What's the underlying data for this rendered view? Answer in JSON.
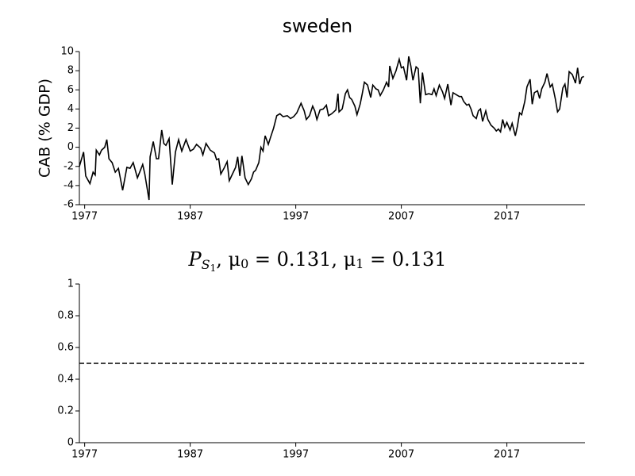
{
  "chart_data": [
    {
      "type": "line",
      "title": "sweden",
      "ylabel": "CAB (% GDP)",
      "xlim": [
        1976.5,
        2024.4
      ],
      "xticks": [
        1977,
        1987,
        1997,
        2007,
        2017
      ],
      "ylim": [
        -6,
        10
      ],
      "yticks": [
        -6,
        -4,
        -2,
        0,
        2,
        4,
        6,
        8,
        10
      ],
      "series": [
        {
          "color": "#000000",
          "dashed": false,
          "x": [
            1976.5,
            1976.9,
            1977.1,
            1977.5,
            1977.8,
            1978.0,
            1978.1,
            1978.4,
            1978.6,
            1978.9,
            1979.1,
            1979.3,
            1979.6,
            1979.9,
            1980.2,
            1980.6,
            1981.0,
            1981.3,
            1981.6,
            1982.0,
            1982.5,
            1982.7,
            1983.1,
            1983.2,
            1983.5,
            1983.8,
            1984.0,
            1984.3,
            1984.5,
            1984.7,
            1985.0,
            1985.3,
            1985.6,
            1985.9,
            1986.2,
            1986.6,
            1987.0,
            1987.3,
            1987.6,
            1988.0,
            1988.2,
            1988.5,
            1988.9,
            1989.3,
            1989.5,
            1989.7,
            1989.9,
            1990.2,
            1990.5,
            1990.7,
            1991.0,
            1991.3,
            1991.5,
            1991.7,
            1991.9,
            1992.2,
            1992.5,
            1992.8,
            1993.0,
            1993.2,
            1993.5,
            1993.7,
            1993.9,
            1994.1,
            1994.4,
            1994.6,
            1994.9,
            1995.2,
            1995.5,
            1995.8,
            1996.2,
            1996.5,
            1996.8,
            1997.1,
            1997.5,
            1997.8,
            1998.0,
            1998.3,
            1998.6,
            1998.8,
            1999.0,
            1999.3,
            1999.6,
            1999.9,
            2000.1,
            2000.4,
            2000.8,
            2001.0,
            2001.1,
            2001.4,
            2001.7,
            2001.9,
            2002.1,
            2002.3,
            2002.6,
            2002.8,
            2003.1,
            2003.3,
            2003.5,
            2003.8,
            2004.1,
            2004.3,
            2004.6,
            2004.8,
            2005.0,
            2005.3,
            2005.6,
            2005.8,
            2005.9,
            2006.2,
            2006.5,
            2006.8,
            2007.0,
            2007.2,
            2007.5,
            2007.7,
            2007.9,
            2008.1,
            2008.4,
            2008.6,
            2008.8,
            2009.0,
            2009.3,
            2009.6,
            2009.9,
            2010.1,
            2010.3,
            2010.6,
            2010.9,
            2011.1,
            2011.4,
            2011.7,
            2011.9,
            2012.2,
            2012.5,
            2012.7,
            2012.9,
            2013.2,
            2013.4,
            2013.6,
            2013.8,
            2014.1,
            2014.3,
            2014.5,
            2014.7,
            2015.0,
            2015.2,
            2015.5,
            2015.8,
            2016.0,
            2016.2,
            2016.4,
            2016.6,
            2016.8,
            2017.0,
            2017.3,
            2017.5,
            2017.8,
            2018.0,
            2018.2,
            2018.4,
            2018.7,
            2018.9,
            2019.2,
            2019.4,
            2019.6,
            2019.9,
            2020.1,
            2020.3,
            2020.6,
            2020.8,
            2021.1,
            2021.3,
            2021.6,
            2021.8,
            2022.0,
            2022.3,
            2022.5,
            2022.7,
            2022.9,
            2023.2,
            2023.5,
            2023.7,
            2023.9,
            2024.1,
            2024.3
          ],
          "values": [
            -2,
            -0.5,
            -3,
            -3.8,
            -2.6,
            -2.9,
            -0.3,
            -0.8,
            -0.3,
            0,
            0.8,
            -1.2,
            -1.6,
            -2.6,
            -2.2,
            -4.5,
            -2.1,
            -2.2,
            -1.6,
            -3.2,
            -1.8,
            -2.8,
            -5.5,
            -1,
            0.6,
            -1.2,
            -1.2,
            1.8,
            0.4,
            0.2,
            0.9,
            -3.9,
            -0.5,
            0.8,
            -0.4,
            0.8,
            -0.4,
            -0.2,
            0.3,
            -0.1,
            -0.8,
            0.4,
            -0.3,
            -0.6,
            -1.3,
            -1.2,
            -2.8,
            -2.2,
            -1.5,
            -3.5,
            -2.8,
            -2.1,
            -1,
            -3,
            -0.9,
            -3.2,
            -3.9,
            -3.3,
            -2.6,
            -2.4,
            -1.6,
            0,
            -0.4,
            1.2,
            0.3,
            1,
            2,
            3.3,
            3.5,
            3.2,
            3.3,
            3,
            3.2,
            3.6,
            4.6,
            3.8,
            2.9,
            3.3,
            4.3,
            3.8,
            2.9,
            3.9,
            4,
            4.4,
            3.3,
            3.5,
            3.9,
            5.6,
            3.7,
            4,
            5.6,
            6,
            5.2,
            5,
            4.3,
            3.4,
            4.5,
            5.6,
            6.8,
            6.5,
            5.2,
            6.5,
            6.1,
            6,
            5.4,
            6,
            6.8,
            6.3,
            8.5,
            7.2,
            8,
            9.2,
            8.3,
            8.4,
            7,
            9.5,
            8.5,
            7,
            8.4,
            8.2,
            4.6,
            7.8,
            5.5,
            5.6,
            5.5,
            6.1,
            5.4,
            6.5,
            5.8,
            5.1,
            6.6,
            4.4,
            5.7,
            5.5,
            5.3,
            5.3,
            4.8,
            4.4,
            4.5,
            4,
            3.3,
            3,
            3.8,
            4,
            2.7,
            3.8,
            2.9,
            2.3,
            2,
            1.7,
            1.9,
            1.6,
            2.9,
            2.1,
            2.6,
            1.8,
            2.5,
            1.2,
            2.2,
            3.6,
            3.4,
            4.8,
            6.3,
            7.1,
            4.5,
            5.7,
            5.9,
            5.1,
            6.1,
            6.8,
            7.7,
            6.3,
            6.6,
            5,
            3.7,
            4,
            6.2,
            6.6,
            5.2,
            7.9,
            7.6,
            6.7,
            8.3,
            6.6,
            7.3,
            7.4
          ]
        }
      ]
    },
    {
      "type": "line",
      "title": [
        "P",
        "S",
        "1",
        ", μ",
        "0",
        " = 0.131, μ",
        "1",
        " = 0.131"
      ],
      "xlim": [
        1976.5,
        2024.4
      ],
      "xticks": [
        1977,
        1987,
        1997,
        2007,
        2017
      ],
      "ylim": [
        0,
        1
      ],
      "yticks": [
        0,
        0.2,
        0.4,
        0.6,
        0.8,
        1
      ],
      "series": [
        {
          "color": "#000000",
          "dashed": true,
          "x": [
            1976.5,
            2024.4
          ],
          "values": [
            0.5,
            0.5
          ]
        }
      ]
    }
  ]
}
